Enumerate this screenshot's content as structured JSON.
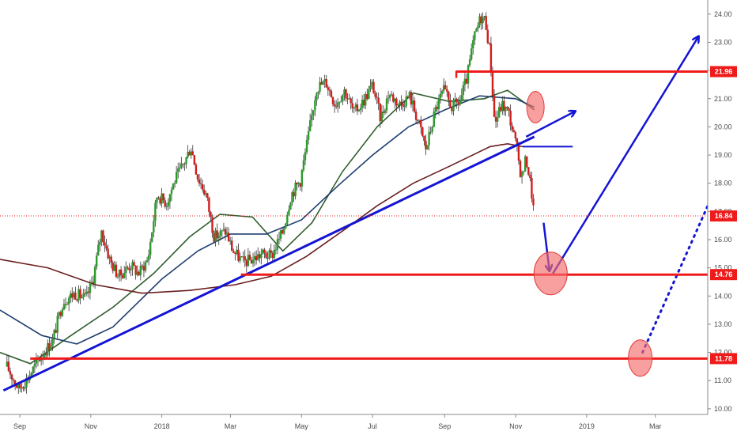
{
  "chart_data": {
    "type": "candlestick",
    "title": "",
    "y_axis": {
      "position": "right",
      "ticks": [
        "10.00",
        "11.00",
        "12.00",
        "13.00",
        "14.00",
        "15.00",
        "16.00",
        "17.00",
        "18.00",
        "19.00",
        "20.00",
        "21.00",
        "22.00",
        "23.00",
        "24.00"
      ],
      "ylim": [
        9.8,
        24.5
      ]
    },
    "x_axis": {
      "ticks": [
        "Sep",
        "Nov",
        "2018",
        "Mar",
        "May",
        "Jul",
        "Sep",
        "Nov",
        "2019",
        "Mar"
      ],
      "start": "2017-08-15",
      "end": "2019-04-15"
    },
    "price_badges": [
      {
        "value": "21.96",
        "color": "#ef1b1b"
      },
      {
        "value": "16.84",
        "color": "#ef1b1b"
      },
      {
        "value": "14.76",
        "color": "#ef1b1b"
      },
      {
        "value": "11.78",
        "color": "#ef1b1b"
      }
    ],
    "last_price": 16.84,
    "price_path": [
      [
        "2017-08-21",
        11.5
      ],
      [
        "2017-08-31",
        10.7
      ],
      [
        "2017-09-08",
        11.1
      ],
      [
        "2017-09-18",
        11.8
      ],
      [
        "2017-09-29",
        12.4
      ],
      [
        "2017-10-08",
        13.8
      ],
      [
        "2017-10-18",
        14.1
      ],
      [
        "2017-10-28",
        13.9
      ],
      [
        "2017-11-03",
        14.6
      ],
      [
        "2017-11-10",
        16.3
      ],
      [
        "2017-11-18",
        15.2
      ],
      [
        "2017-11-25",
        14.7
      ],
      [
        "2017-12-05",
        15.1
      ],
      [
        "2017-12-12",
        14.8
      ],
      [
        "2017-12-20",
        15.3
      ],
      [
        "2017-12-28",
        17.6
      ],
      [
        "2018-01-05",
        17.3
      ],
      [
        "2018-01-12",
        18.1
      ],
      [
        "2018-01-20",
        18.7
      ],
      [
        "2018-01-26",
        19.3
      ],
      [
        "2018-02-01",
        18.2
      ],
      [
        "2018-02-08",
        17.6
      ],
      [
        "2018-02-15",
        16.1
      ],
      [
        "2018-02-25",
        16.3
      ],
      [
        "2018-03-03",
        15.6
      ],
      [
        "2018-03-12",
        15.2
      ],
      [
        "2018-03-20",
        15.3
      ],
      [
        "2018-03-28",
        15.5
      ],
      [
        "2018-04-05",
        15.4
      ],
      [
        "2018-04-15",
        16.3
      ],
      [
        "2018-04-22",
        17.6
      ],
      [
        "2018-04-30",
        18.1
      ],
      [
        "2018-05-07",
        19.7
      ],
      [
        "2018-05-14",
        21.4
      ],
      [
        "2018-05-22",
        21.6
      ],
      [
        "2018-05-30",
        20.8
      ],
      [
        "2018-06-07",
        21.3
      ],
      [
        "2018-06-15",
        20.5
      ],
      [
        "2018-06-23",
        20.9
      ],
      [
        "2018-07-01",
        21.5
      ],
      [
        "2018-07-08",
        20.3
      ],
      [
        "2018-07-15",
        21.2
      ],
      [
        "2018-07-24",
        20.8
      ],
      [
        "2018-08-02",
        21.1
      ],
      [
        "2018-08-10",
        20.1
      ],
      [
        "2018-08-16",
        19.2
      ],
      [
        "2018-08-24",
        20.6
      ],
      [
        "2018-08-31",
        21.3
      ],
      [
        "2018-09-07",
        20.7
      ],
      [
        "2018-09-14",
        20.9
      ],
      [
        "2018-09-20",
        21.7
      ],
      [
        "2018-09-26",
        23.1
      ],
      [
        "2018-10-02",
        23.9
      ],
      [
        "2018-10-06",
        23.8
      ],
      [
        "2018-10-10",
        22.6
      ],
      [
        "2018-10-14",
        20.1
      ],
      [
        "2018-10-20",
        20.8
      ],
      [
        "2018-10-26",
        20.5
      ],
      [
        "2018-11-01",
        19.4
      ],
      [
        "2018-11-06",
        18.2
      ],
      [
        "2018-11-10",
        18.9
      ],
      [
        "2018-11-14",
        17.9
      ],
      [
        "2018-11-17",
        16.84
      ]
    ],
    "moving_averages": [
      {
        "color": "#2f5e2f",
        "points": [
          [
            "2017-08-15",
            12.0
          ],
          [
            "2017-09-10",
            11.6
          ],
          [
            "2017-10-15",
            12.6
          ],
          [
            "2017-11-20",
            13.6
          ],
          [
            "2017-12-25",
            14.8
          ],
          [
            "2018-01-25",
            16.1
          ],
          [
            "2018-02-20",
            16.9
          ],
          [
            "2018-03-20",
            16.8
          ],
          [
            "2018-04-15",
            15.6
          ],
          [
            "2018-05-10",
            16.6
          ],
          [
            "2018-06-05",
            18.4
          ],
          [
            "2018-07-05",
            20.0
          ],
          [
            "2018-08-05",
            21.2
          ],
          [
            "2018-09-05",
            20.9
          ],
          [
            "2018-10-05",
            21.0
          ],
          [
            "2018-10-25",
            21.3
          ],
          [
            "2018-11-17",
            20.6
          ]
        ]
      },
      {
        "color": "#1f3f6f",
        "points": [
          [
            "2017-08-15",
            13.5
          ],
          [
            "2017-09-20",
            12.6
          ],
          [
            "2017-10-20",
            12.3
          ],
          [
            "2017-11-20",
            12.9
          ],
          [
            "2018-01-01",
            14.6
          ],
          [
            "2018-02-01",
            15.6
          ],
          [
            "2018-03-01",
            16.2
          ],
          [
            "2018-04-01",
            16.2
          ],
          [
            "2018-05-01",
            16.7
          ],
          [
            "2018-06-01",
            17.9
          ],
          [
            "2018-07-01",
            19.0
          ],
          [
            "2018-08-01",
            20.0
          ],
          [
            "2018-09-01",
            20.6
          ],
          [
            "2018-10-01",
            21.1
          ],
          [
            "2018-11-01",
            21.0
          ],
          [
            "2018-11-17",
            20.7
          ]
        ]
      },
      {
        "color": "#6b1f1f",
        "points": [
          [
            "2017-08-15",
            15.3
          ],
          [
            "2017-09-25",
            15.0
          ],
          [
            "2017-11-05",
            14.4
          ],
          [
            "2017-12-15",
            14.1
          ],
          [
            "2018-01-25",
            14.2
          ],
          [
            "2018-03-05",
            14.4
          ],
          [
            "2018-04-05",
            14.7
          ],
          [
            "2018-05-05",
            15.4
          ],
          [
            "2018-06-05",
            16.3
          ],
          [
            "2018-07-05",
            17.2
          ],
          [
            "2018-08-05",
            18.0
          ],
          [
            "2018-09-05",
            18.6
          ],
          [
            "2018-10-10",
            19.3
          ],
          [
            "2018-10-25",
            19.4
          ],
          [
            "2018-11-07",
            19.3
          ]
        ]
      }
    ],
    "annotations": [
      {
        "kind": "trendline",
        "color": "#1414d4",
        "from": [
          "2017-08-18",
          10.65
        ],
        "to": [
          "2018-11-17",
          19.65
        ]
      },
      {
        "kind": "arrow",
        "color": "#1414d4",
        "from": [
          "2018-11-10",
          19.65
        ],
        "to": [
          "2018-12-22",
          20.55
        ]
      },
      {
        "kind": "hline",
        "color": "#1414d4",
        "from": [
          "2018-11-07",
          19.3
        ],
        "to": [
          "2018-12-20",
          19.3
        ]
      },
      {
        "kind": "arrow",
        "color": "#1414d4",
        "from": [
          "2018-11-25",
          16.6
        ],
        "to": [
          "2018-11-30",
          14.9
        ]
      },
      {
        "kind": "arrow",
        "color": "#1414d4",
        "from": [
          "2018-12-03",
          14.8
        ],
        "to": [
          "2019-04-07",
          23.2
        ]
      },
      {
        "kind": "dotted",
        "color": "#1414d4",
        "from": [
          "2019-02-18",
          12.0
        ],
        "to": [
          "2019-04-15",
          17.2
        ]
      },
      {
        "kind": "hline",
        "color": "#ef1b1b",
        "from": [
          "2018-09-11",
          21.96
        ],
        "to": [
          "2019-04-20",
          21.96
        ]
      },
      {
        "kind": "hline",
        "color": "#ef1b1b",
        "from": [
          "2018-03-10",
          14.76
        ],
        "to": [
          "2019-04-20",
          14.76
        ]
      },
      {
        "kind": "hline",
        "color": "#ef1b1b",
        "from": [
          "2017-09-10",
          11.78
        ],
        "to": [
          "2019-04-20",
          11.78
        ]
      },
      {
        "kind": "ellipse",
        "color": "#f46b6b",
        "center": [
          "2018-11-18",
          20.7
        ]
      },
      {
        "kind": "ellipse",
        "color": "#f46b6b",
        "center": [
          "2018-12-01",
          14.8
        ]
      },
      {
        "kind": "ellipse",
        "color": "#f46b6b",
        "center": [
          "2019-02-16",
          11.8
        ]
      }
    ]
  }
}
